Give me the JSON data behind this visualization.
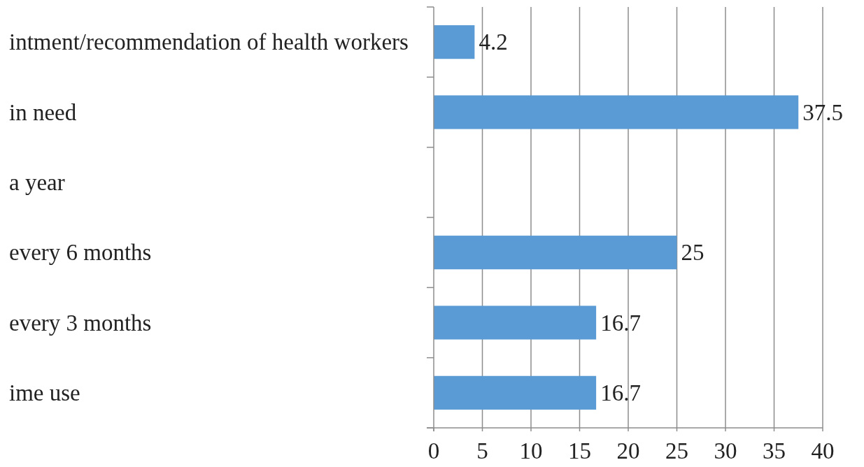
{
  "chart_data": {
    "type": "bar",
    "orientation": "horizontal",
    "categories": [
      "intment/recommendation of health workers",
      "in need",
      "a year",
      "every 6 months",
      "every 3 months",
      "ime use"
    ],
    "values": [
      4.2,
      37.5,
      null,
      25,
      16.7,
      16.7
    ],
    "color": "#5b9bd5",
    "xlim": [
      0,
      40
    ],
    "xticks": [
      0,
      5,
      10,
      15,
      20,
      25,
      30,
      35,
      40
    ],
    "grid": "x",
    "data_labels": true
  }
}
